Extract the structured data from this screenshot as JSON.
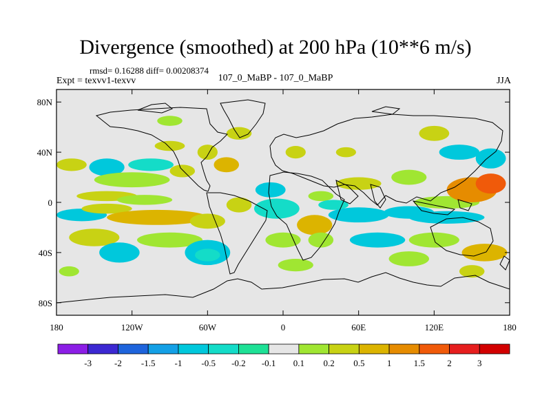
{
  "header": {
    "title": "Divergence (smoothed) at 200 hPa (10**6 m/s)",
    "stats": "rmsd= 0.16288  diff= 0.00208374",
    "expt": "Expt = texvv1-texvv",
    "cases": "107_0_MaBP - 107_0_MaBP",
    "season": "JJA"
  },
  "chart_data": {
    "type": "heatmap",
    "title": "Divergence (smoothed) at 200 hPa (10**6 m/s)",
    "x_ticks": [
      {
        "value": -180,
        "label": "180"
      },
      {
        "value": -120,
        "label": "120W"
      },
      {
        "value": -60,
        "label": "60W"
      },
      {
        "value": 0,
        "label": "0"
      },
      {
        "value": 60,
        "label": "60E"
      },
      {
        "value": 120,
        "label": "120E"
      },
      {
        "value": 180,
        "label": "180"
      }
    ],
    "y_ticks": [
      {
        "value": 80,
        "label": "80N"
      },
      {
        "value": 40,
        "label": "40N"
      },
      {
        "value": 0,
        "label": "0"
      },
      {
        "value": -40,
        "label": "40S"
      },
      {
        "value": -80,
        "label": "80S"
      }
    ],
    "xlim": [
      -180,
      180
    ],
    "ylim": [
      -90,
      90
    ],
    "colorbar": {
      "boundaries": [
        "-3",
        "-2",
        "-1.5",
        "-1",
        "-0.5",
        "-0.2",
        "-0.1",
        "0.1",
        "0.2",
        "0.5",
        "1",
        "1.5",
        "2",
        "3"
      ],
      "colors": [
        "#8c1ee6",
        "#3c28d2",
        "#1e64dc",
        "#14a0e6",
        "#00c8dc",
        "#14dcc8",
        "#1ee196",
        "#e6e6e6",
        "#a0e632",
        "#c8d214",
        "#dcb400",
        "#e68c00",
        "#f05a0a",
        "#e61e1e",
        "#d20000"
      ]
    },
    "blobs": [
      {
        "lon": -168,
        "lat": 30,
        "rlon": 12,
        "rlat": 5,
        "bin": 9
      },
      {
        "lon": -140,
        "lat": 28,
        "rlon": 14,
        "rlat": 7,
        "bin": 4
      },
      {
        "lon": -105,
        "lat": 30,
        "rlon": 18,
        "rlat": 5,
        "bin": 5
      },
      {
        "lon": -120,
        "lat": 18,
        "rlon": 30,
        "rlat": 6,
        "bin": 8
      },
      {
        "lon": -80,
        "lat": 25,
        "rlon": 10,
        "rlat": 5,
        "bin": 9
      },
      {
        "lon": -60,
        "lat": 40,
        "rlon": 8,
        "rlat": 6,
        "bin": 9
      },
      {
        "lon": -45,
        "lat": 30,
        "rlon": 10,
        "rlat": 6,
        "bin": 10
      },
      {
        "lon": -140,
        "lat": 5,
        "rlon": 24,
        "rlat": 4,
        "bin": 9
      },
      {
        "lon": -160,
        "lat": -10,
        "rlon": 20,
        "rlat": 5,
        "bin": 4
      },
      {
        "lon": -140,
        "lat": -5,
        "rlon": 20,
        "rlat": 4,
        "bin": 9
      },
      {
        "lon": -110,
        "lat": 2,
        "rlon": 22,
        "rlat": 4,
        "bin": 8
      },
      {
        "lon": -100,
        "lat": -12,
        "rlon": 40,
        "rlat": 6,
        "bin": 10
      },
      {
        "lon": -60,
        "lat": -15,
        "rlon": 14,
        "rlat": 6,
        "bin": 9
      },
      {
        "lon": -90,
        "lat": -30,
        "rlon": 26,
        "rlat": 6,
        "bin": 8
      },
      {
        "lon": -150,
        "lat": -28,
        "rlon": 20,
        "rlat": 7,
        "bin": 9
      },
      {
        "lon": -130,
        "lat": -40,
        "rlon": 16,
        "rlat": 8,
        "bin": 4
      },
      {
        "lon": -60,
        "lat": -40,
        "rlon": 18,
        "rlat": 10,
        "bin": 4
      },
      {
        "lon": -60,
        "lat": -42,
        "rlon": 10,
        "rlat": 5,
        "bin": 5
      },
      {
        "lon": -5,
        "lat": -5,
        "rlon": 18,
        "rlat": 8,
        "bin": 5
      },
      {
        "lon": -35,
        "lat": -2,
        "rlon": 10,
        "rlat": 6,
        "bin": 9
      },
      {
        "lon": 25,
        "lat": -18,
        "rlon": 14,
        "rlat": 8,
        "bin": 10
      },
      {
        "lon": 30,
        "lat": -30,
        "rlon": 10,
        "rlat": 6,
        "bin": 8
      },
      {
        "lon": 0,
        "lat": -30,
        "rlon": 14,
        "rlat": 6,
        "bin": 8
      },
      {
        "lon": 30,
        "lat": 5,
        "rlon": 10,
        "rlat": 4,
        "bin": 8
      },
      {
        "lon": 60,
        "lat": -10,
        "rlon": 24,
        "rlat": 6,
        "bin": 4
      },
      {
        "lon": 40,
        "lat": -2,
        "rlon": 12,
        "rlat": 4,
        "bin": 5
      },
      {
        "lon": 100,
        "lat": -8,
        "rlon": 20,
        "rlat": 5,
        "bin": 4
      },
      {
        "lon": 130,
        "lat": -12,
        "rlon": 30,
        "rlat": 5,
        "bin": 4
      },
      {
        "lon": 130,
        "lat": 0,
        "rlon": 26,
        "rlat": 5,
        "bin": 8
      },
      {
        "lon": 150,
        "lat": 10,
        "rlon": 20,
        "rlat": 10,
        "bin": 11
      },
      {
        "lon": 165,
        "lat": 15,
        "rlon": 12,
        "rlat": 8,
        "bin": 12
      },
      {
        "lon": 100,
        "lat": 20,
        "rlon": 14,
        "rlat": 6,
        "bin": 8
      },
      {
        "lon": 60,
        "lat": 15,
        "rlon": 18,
        "rlat": 5,
        "bin": 9
      },
      {
        "lon": 75,
        "lat": -30,
        "rlon": 22,
        "rlat": 6,
        "bin": 4
      },
      {
        "lon": 120,
        "lat": -30,
        "rlon": 20,
        "rlat": 6,
        "bin": 8
      },
      {
        "lon": 160,
        "lat": -40,
        "rlon": 18,
        "rlat": 7,
        "bin": 10
      },
      {
        "lon": 100,
        "lat": -45,
        "rlon": 16,
        "rlat": 6,
        "bin": 8
      },
      {
        "lon": 10,
        "lat": -50,
        "rlon": 14,
        "rlat": 5,
        "bin": 8
      },
      {
        "lon": 150,
        "lat": -55,
        "rlon": 10,
        "rlat": 5,
        "bin": 9
      },
      {
        "lon": 140,
        "lat": 40,
        "rlon": 16,
        "rlat": 6,
        "bin": 4
      },
      {
        "lon": 120,
        "lat": 55,
        "rlon": 12,
        "rlat": 6,
        "bin": 9
      },
      {
        "lon": 165,
        "lat": 35,
        "rlon": 12,
        "rlat": 8,
        "bin": 4
      },
      {
        "lon": -35,
        "lat": 55,
        "rlon": 10,
        "rlat": 5,
        "bin": 9
      },
      {
        "lon": -90,
        "lat": 45,
        "rlon": 12,
        "rlat": 4,
        "bin": 9
      },
      {
        "lon": 10,
        "lat": 40,
        "rlon": 8,
        "rlat": 5,
        "bin": 9
      },
      {
        "lon": 50,
        "lat": 40,
        "rlon": 8,
        "rlat": 4,
        "bin": 9
      },
      {
        "lon": -10,
        "lat": 10,
        "rlon": 12,
        "rlat": 6,
        "bin": 4
      },
      {
        "lon": -170,
        "lat": -55,
        "rlon": 8,
        "rlat": 4,
        "bin": 8
      },
      {
        "lon": -90,
        "lat": 65,
        "rlon": 10,
        "rlat": 4,
        "bin": 8
      }
    ]
  }
}
